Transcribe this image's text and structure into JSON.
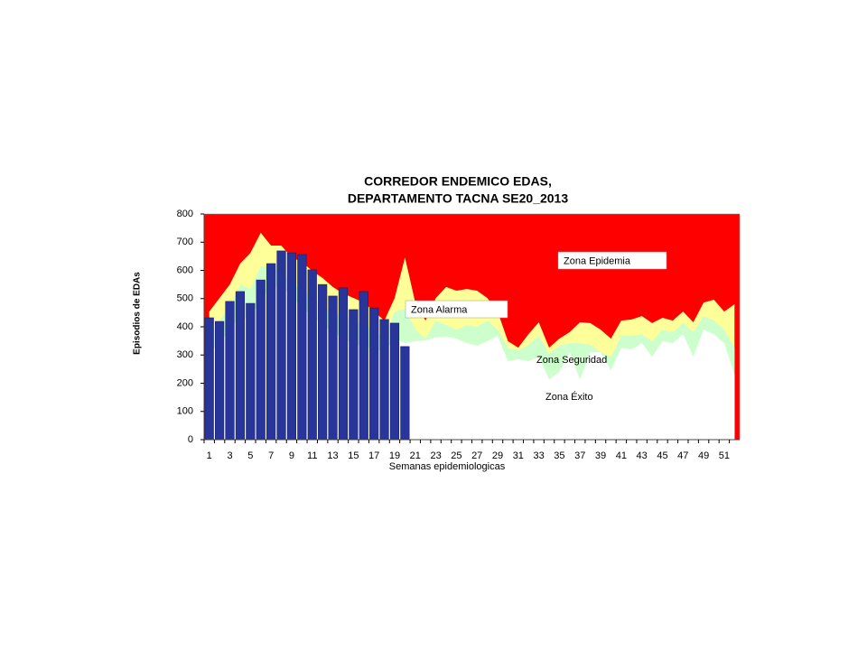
{
  "chart_data": {
    "type": "bar",
    "title_lines": [
      "CORREDOR ENDEMICO EDAS,",
      "DEPARTAMENTO TACNA SE20_2013"
    ],
    "y_label": "Episodios de EDAs",
    "x_label": "Semanas epidemiologicas",
    "categories": [
      "1",
      null,
      "3",
      null,
      "5",
      null,
      "7",
      null,
      "9",
      null,
      "11",
      null,
      "13",
      null,
      "15",
      null,
      "17",
      null,
      "19",
      null,
      "21",
      null,
      "23",
      null,
      "25",
      null,
      "27",
      null,
      "29",
      null,
      "31",
      null,
      "33",
      null,
      "35",
      null,
      "37",
      null,
      "39",
      null,
      "41",
      null,
      "43",
      null,
      "45",
      null,
      "47",
      null,
      "49",
      null,
      "51",
      null
    ],
    "values": [
      432,
      419,
      490,
      525,
      483,
      566,
      624,
      669,
      662,
      656,
      602,
      550,
      509,
      538,
      461,
      525,
      467,
      426,
      413,
      330,
      null,
      null,
      null,
      null,
      null,
      null,
      null,
      null,
      null,
      null,
      null,
      null,
      null,
      null,
      null,
      null,
      null,
      null,
      null,
      null,
      null,
      null,
      null,
      null,
      null,
      null,
      null,
      null,
      null,
      null,
      null,
      null
    ],
    "color": "#28359a",
    "bands": [
      {
        "name": "Zona Alarma",
        "color": "#ffff99",
        "values": [
          454,
          502,
          550,
          624,
          662,
          733,
          688,
          688,
          646,
          630,
          598,
          573,
          541,
          518,
          502,
          486,
          454,
          422,
          502,
          646,
          486,
          422,
          502,
          541,
          528,
          534,
          528,
          502,
          454,
          349,
          326,
          374,
          416,
          326,
          358,
          381,
          416,
          413,
          390,
          358,
          422,
          426,
          438,
          413,
          432,
          422,
          454,
          416,
          486,
          496,
          454,
          480
        ]
      },
      {
        "name": "Zona Seguridad",
        "color": "#ccffcc",
        "values": [
          374,
          422,
          470,
          550,
          534,
          614,
          614,
          598,
          550,
          534,
          502,
          470,
          454,
          438,
          422,
          406,
          390,
          358,
          454,
          464,
          390,
          358,
          422,
          406,
          390,
          406,
          400,
          422,
          390,
          326,
          317,
          336,
          368,
          304,
          333,
          342,
          342,
          336,
          310,
          294,
          368,
          368,
          374,
          349,
          390,
          381,
          413,
          381,
          438,
          422,
          390,
          326
        ]
      },
      {
        "name": "Zona Éxito",
        "color": "#ffffff",
        "values": [
          310,
          342,
          390,
          438,
          422,
          502,
          534,
          550,
          502,
          470,
          438,
          406,
          381,
          358,
          342,
          326,
          326,
          310,
          358,
          342,
          349,
          352,
          362,
          365,
          358,
          342,
          333,
          349,
          368,
          278,
          285,
          278,
          294,
          214,
          240,
          310,
          214,
          310,
          310,
          246,
          326,
          320,
          342,
          294,
          349,
          342,
          374,
          294,
          390,
          374,
          342,
          230
        ]
      }
    ],
    "epidemic_zone": {
      "name": "Zona Epidemia",
      "color": "#ff0000"
    },
    "ylim": [
      0,
      800
    ],
    "yticks": [
      0,
      100,
      200,
      300,
      400,
      500,
      600,
      700,
      800
    ]
  }
}
